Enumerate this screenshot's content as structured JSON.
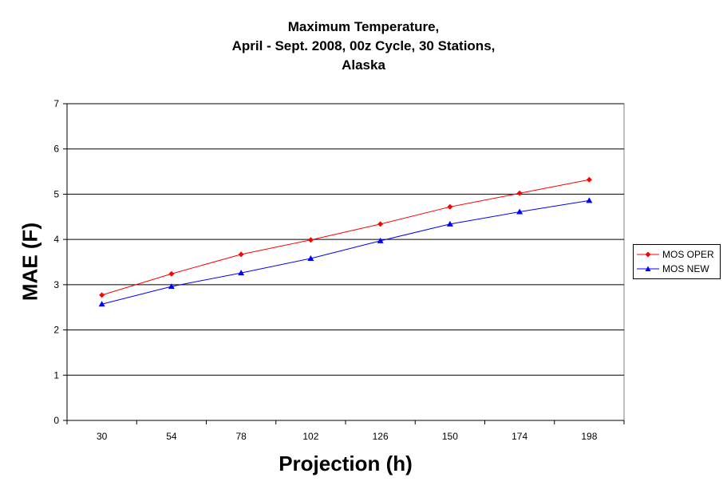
{
  "chart_data": {
    "type": "line",
    "title_lines": [
      "Maximum Temperature,",
      "April - Sept. 2008, 00z Cycle, 30 Stations,",
      "Alaska"
    ],
    "xlabel": "Projection (h)",
    "ylabel": "MAE (F)",
    "categories": [
      "30",
      "54",
      "78",
      "102",
      "126",
      "150",
      "174",
      "198"
    ],
    "ylim": [
      0,
      7
    ],
    "yticks": [
      0,
      1,
      2,
      3,
      4,
      5,
      6,
      7
    ],
    "grid": true,
    "legend_position": "right",
    "series": [
      {
        "name": "MOS OPER",
        "color": "#ff0000",
        "marker": "diamond",
        "values": [
          2.77,
          3.24,
          3.67,
          3.99,
          4.34,
          4.72,
          5.02,
          5.32
        ]
      },
      {
        "name": "MOS NEW",
        "color": "#0000ff",
        "marker": "triangle",
        "values": [
          2.57,
          2.96,
          3.26,
          3.58,
          3.97,
          4.34,
          4.61,
          4.86
        ]
      }
    ]
  }
}
